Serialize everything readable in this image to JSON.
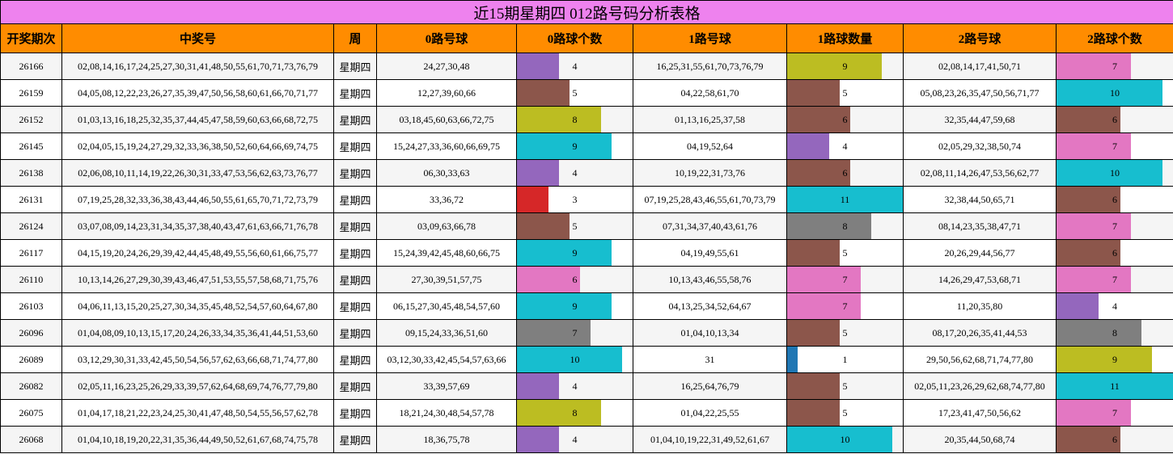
{
  "title": "近15期星期四 012路号码分析表格",
  "headers": [
    "开奖期次",
    "中奖号",
    "周",
    "0路号球",
    "0路球个数",
    "1路号球",
    "1路球数量",
    "2路号球",
    "2路球个数"
  ],
  "count_scale_max": 11,
  "palette": {
    "1": "#1f77b4",
    "3": "#d62728",
    "4": "#9467bd",
    "5": "#8c564b",
    "6": "#8c564b",
    "7": "#e377c2",
    "8": "#bcbd22",
    "9": "#17becf",
    "10": "#17becf",
    "11": "#17becf"
  },
  "color_overrides": {
    "0_26096": "#7f7f7f",
    "0_26110": "#e377c2",
    "1_26124": "#7f7f7f",
    "1_26166": "#bcbd22",
    "2_26096": "#7f7f7f",
    "2_26089": "#bcbd22",
    "2_26082": "#17becf"
  },
  "rows": [
    {
      "period": "26166",
      "numbers": "02,08,14,16,17,24,25,27,30,31,41,48,50,55,61,70,71,73,76,79",
      "week": "星期四",
      "r0": "24,27,30,48",
      "c0": 4,
      "r1": "16,25,31,55,61,70,73,76,79",
      "c1": 9,
      "r2": "02,08,14,17,41,50,71",
      "c2": 7
    },
    {
      "period": "26159",
      "numbers": "04,05,08,12,22,23,26,27,35,39,47,50,56,58,60,61,66,70,71,77",
      "week": "星期四",
      "r0": "12,27,39,60,66",
      "c0": 5,
      "r1": "04,22,58,61,70",
      "c1": 5,
      "r2": "05,08,23,26,35,47,50,56,71,77",
      "c2": 10
    },
    {
      "period": "26152",
      "numbers": "01,03,13,16,18,25,32,35,37,44,45,47,58,59,60,63,66,68,72,75",
      "week": "星期四",
      "r0": "03,18,45,60,63,66,72,75",
      "c0": 8,
      "r1": "01,13,16,25,37,58",
      "c1": 6,
      "r2": "32,35,44,47,59,68",
      "c2": 6
    },
    {
      "period": "26145",
      "numbers": "02,04,05,15,19,24,27,29,32,33,36,38,50,52,60,64,66,69,74,75",
      "week": "星期四",
      "r0": "15,24,27,33,36,60,66,69,75",
      "c0": 9,
      "r1": "04,19,52,64",
      "c1": 4,
      "r2": "02,05,29,32,38,50,74",
      "c2": 7
    },
    {
      "period": "26138",
      "numbers": "02,06,08,10,11,14,19,22,26,30,31,33,47,53,56,62,63,73,76,77",
      "week": "星期四",
      "r0": "06,30,33,63",
      "c0": 4,
      "r1": "10,19,22,31,73,76",
      "c1": 6,
      "r2": "02,08,11,14,26,47,53,56,62,77",
      "c2": 10
    },
    {
      "period": "26131",
      "numbers": "07,19,25,28,32,33,36,38,43,44,46,50,55,61,65,70,71,72,73,79",
      "week": "星期四",
      "r0": "33,36,72",
      "c0": 3,
      "r1": "07,19,25,28,43,46,55,61,70,73,79",
      "c1": 11,
      "r2": "32,38,44,50,65,71",
      "c2": 6
    },
    {
      "period": "26124",
      "numbers": "03,07,08,09,14,23,31,34,35,37,38,40,43,47,61,63,66,71,76,78",
      "week": "星期四",
      "r0": "03,09,63,66,78",
      "c0": 5,
      "r1": "07,31,34,37,40,43,61,76",
      "c1": 8,
      "r2": "08,14,23,35,38,47,71",
      "c2": 7
    },
    {
      "period": "26117",
      "numbers": "04,15,19,20,24,26,29,39,42,44,45,48,49,55,56,60,61,66,75,77",
      "week": "星期四",
      "r0": "15,24,39,42,45,48,60,66,75",
      "c0": 9,
      "r1": "04,19,49,55,61",
      "c1": 5,
      "r2": "20,26,29,44,56,77",
      "c2": 6
    },
    {
      "period": "26110",
      "numbers": "10,13,14,26,27,29,30,39,43,46,47,51,53,55,57,58,68,71,75,76",
      "week": "星期四",
      "r0": "27,30,39,51,57,75",
      "c0": 6,
      "r1": "10,13,43,46,55,58,76",
      "c1": 7,
      "r2": "14,26,29,47,53,68,71",
      "c2": 7
    },
    {
      "period": "26103",
      "numbers": "04,06,11,13,15,20,25,27,30,34,35,45,48,52,54,57,60,64,67,80",
      "week": "星期四",
      "r0": "06,15,27,30,45,48,54,57,60",
      "c0": 9,
      "r1": "04,13,25,34,52,64,67",
      "c1": 7,
      "r2": "11,20,35,80",
      "c2": 4
    },
    {
      "period": "26096",
      "numbers": "01,04,08,09,10,13,15,17,20,24,26,33,34,35,36,41,44,51,53,60",
      "week": "星期四",
      "r0": "09,15,24,33,36,51,60",
      "c0": 7,
      "r1": "01,04,10,13,34",
      "c1": 5,
      "r2": "08,17,20,26,35,41,44,53",
      "c2": 8
    },
    {
      "period": "26089",
      "numbers": "03,12,29,30,31,33,42,45,50,54,56,57,62,63,66,68,71,74,77,80",
      "week": "星期四",
      "r0": "03,12,30,33,42,45,54,57,63,66",
      "c0": 10,
      "r1": "31",
      "c1": 1,
      "r2": "29,50,56,62,68,71,74,77,80",
      "c2": 9
    },
    {
      "period": "26082",
      "numbers": "02,05,11,16,23,25,26,29,33,39,57,62,64,68,69,74,76,77,79,80",
      "week": "星期四",
      "r0": "33,39,57,69",
      "c0": 4,
      "r1": "16,25,64,76,79",
      "c1": 5,
      "r2": "02,05,11,23,26,29,62,68,74,77,80",
      "c2": 11
    },
    {
      "period": "26075",
      "numbers": "01,04,17,18,21,22,23,24,25,30,41,47,48,50,54,55,56,57,62,78",
      "week": "星期四",
      "r0": "18,21,24,30,48,54,57,78",
      "c0": 8,
      "r1": "01,04,22,25,55",
      "c1": 5,
      "r2": "17,23,41,47,50,56,62",
      "c2": 7
    },
    {
      "period": "26068",
      "numbers": "01,04,10,18,19,20,22,31,35,36,44,49,50,52,61,67,68,74,75,78",
      "week": "星期四",
      "r0": "18,36,75,78",
      "c0": 4,
      "r1": "01,04,10,19,22,31,49,52,61,67",
      "c1": 10,
      "r2": "20,35,44,50,68,74",
      "c2": 6
    }
  ]
}
